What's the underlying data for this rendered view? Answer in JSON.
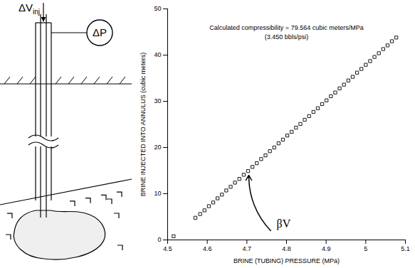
{
  "chart_data": {
    "type": "scatter",
    "x_label": "BRINE (TUBING) PRESSURE (MPa)",
    "y_label": "BRINE INJECTED INTO ANNULUS (cubic meters)",
    "marker": "square",
    "color": "#000000",
    "x": [
      4.515,
      4.57,
      4.582,
      4.593,
      4.604,
      4.615,
      4.626,
      4.637,
      4.648,
      4.659,
      4.67,
      4.681,
      4.692,
      4.703,
      4.714,
      4.725,
      4.736,
      4.747,
      4.758,
      4.769,
      4.78,
      4.791,
      4.802,
      4.813,
      4.824,
      4.835,
      4.846,
      4.857,
      4.868,
      4.879,
      4.89,
      4.901,
      4.912,
      4.923,
      4.934,
      4.945,
      4.956,
      4.967,
      4.978,
      4.989,
      5.0,
      5.011,
      5.022,
      5.033,
      5.044,
      5.055,
      5.066,
      5.077
    ],
    "values": [
      0.8,
      4.8,
      5.6,
      6.4,
      7.3,
      8.1,
      9.0,
      9.8,
      10.7,
      11.5,
      12.4,
      13.2,
      14.1,
      14.9,
      15.8,
      16.6,
      17.5,
      18.3,
      19.2,
      20.0,
      20.9,
      21.7,
      22.6,
      23.4,
      24.3,
      25.1,
      26.0,
      26.8,
      27.7,
      28.5,
      29.4,
      30.2,
      31.1,
      31.9,
      32.8,
      33.6,
      34.5,
      35.3,
      36.2,
      37.0,
      37.9,
      38.7,
      39.6,
      40.4,
      41.3,
      42.1,
      43.0,
      43.8
    ],
    "xlim": [
      4.5,
      5.1
    ],
    "xticks": [
      4.5,
      4.6,
      4.7,
      4.8,
      4.9,
      5,
      5.1
    ],
    "ylim": [
      0,
      50
    ],
    "yticks": [
      0,
      10,
      20,
      30,
      40,
      50
    ],
    "grid": false,
    "annotations": [
      {
        "lines": [
          "Calculated compressibility = 79.564 cubic meters/MPa",
          "(3.450 bbls/psi)"
        ],
        "x": 4.8,
        "y": 47
      },
      {
        "text": "βV",
        "x": 4.775,
        "y": 3.5,
        "arrow_from": [
          4.76,
          2
        ],
        "arrow_to": [
          4.705,
          14
        ]
      }
    ]
  },
  "diagram": {
    "injection_label": {
      "text": "ΔV",
      "subscript": "inj"
    },
    "pressure_label": "ΔP"
  }
}
